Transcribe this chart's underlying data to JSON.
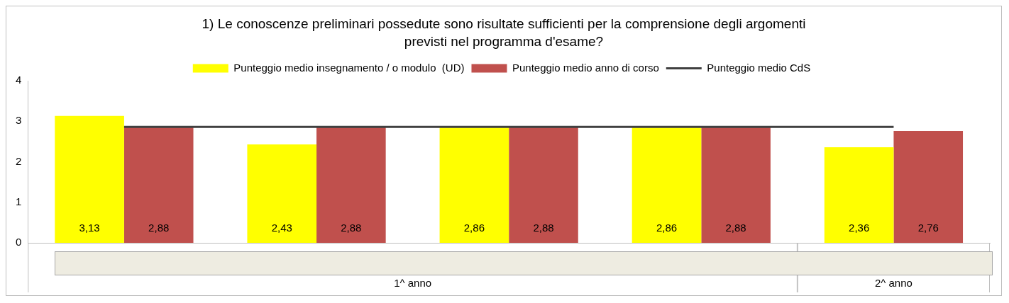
{
  "chart_data": {
    "type": "bar",
    "title": "1) Le conoscenze preliminari possedute sono risultate sufficienti per la comprensione degli argomenti previsti nel programma d'esame?",
    "categories": [
      null,
      null,
      null,
      null,
      null
    ],
    "series": [
      {
        "name": "Punteggio medio insegnamento / o modulo  (UD)",
        "color": "#ffff00",
        "values": [
          3.13,
          2.43,
          2.86,
          2.86,
          2.36
        ],
        "value_labels": [
          "3,13",
          "2,43",
          "2,86",
          "2,86",
          "2,36"
        ]
      },
      {
        "name": "Punteggio medio anno di corso",
        "color": "#c0504d",
        "values": [
          2.88,
          2.88,
          2.88,
          2.88,
          2.76
        ],
        "value_labels": [
          "2,88",
          "2,88",
          "2,88",
          "2,88",
          "2,76"
        ]
      },
      {
        "name": "Punteggio medio CdS",
        "type": "line",
        "color": "#404040",
        "values": [
          2.86,
          2.86,
          2.86,
          2.86,
          2.86
        ]
      }
    ],
    "ylim": [
      0,
      4
    ],
    "yticks": [
      0,
      1,
      2,
      3,
      4
    ],
    "grid": false,
    "legend": "top",
    "marker": "none",
    "annotations": [
      "1^ anno",
      "2^ anno"
    ]
  }
}
